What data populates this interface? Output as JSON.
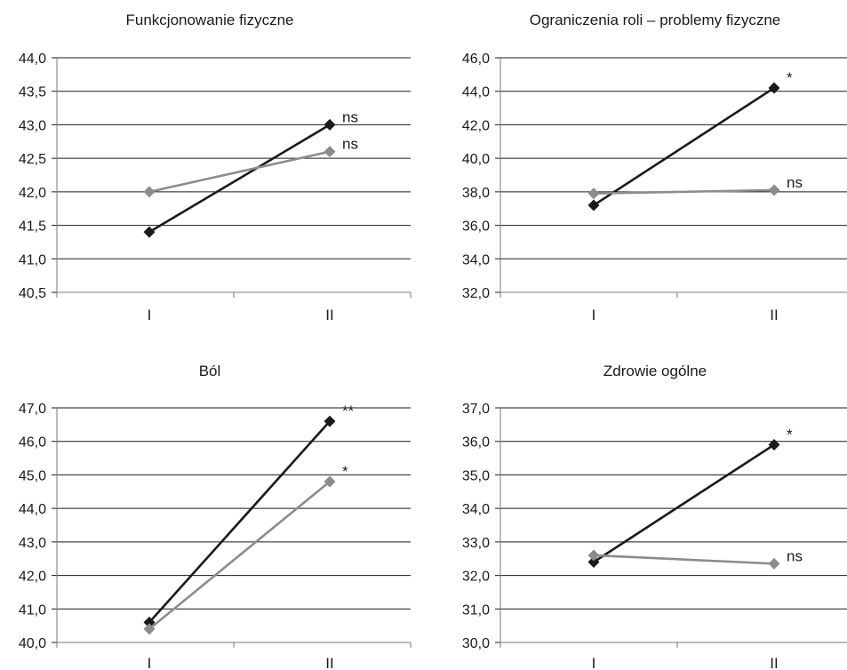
{
  "colors": {
    "series_dark": "#1a1a1a",
    "series_gray": "#8c8c8c",
    "axis": "#7a7a7a",
    "grid": "#1a1a1a"
  },
  "chart_data": [
    {
      "type": "line",
      "title": "Funkcjonowanie fizyczne",
      "categories": [
        "I",
        "II"
      ],
      "ylim": [
        40.5,
        44.0
      ],
      "yticks": [
        "44,0",
        "43,5",
        "43,0",
        "42,5",
        "42,0",
        "41,5",
        "41,0",
        "40,5"
      ],
      "grid": true,
      "series": [
        {
          "values": [
            41.4,
            43.0
          ],
          "color": "#1a1a1a",
          "marker": "diamond",
          "annotation": "ns"
        },
        {
          "values": [
            42.0,
            42.6
          ],
          "color": "#8c8c8c",
          "marker": "diamond",
          "annotation": "ns"
        }
      ]
    },
    {
      "type": "line",
      "title": "Ograniczenia roli – problemy fizyczne",
      "categories": [
        "I",
        "II"
      ],
      "ylim": [
        32.0,
        46.0
      ],
      "yticks": [
        "46,0",
        "44,0",
        "42,0",
        "40,0",
        "38,0",
        "36,0",
        "34,0",
        "32,0"
      ],
      "grid": true,
      "series": [
        {
          "values": [
            37.2,
            44.2
          ],
          "color": "#1a1a1a",
          "marker": "diamond",
          "annotation": "*"
        },
        {
          "values": [
            37.9,
            38.1
          ],
          "color": "#8c8c8c",
          "marker": "diamond",
          "annotation": "ns"
        }
      ]
    },
    {
      "type": "line",
      "title": "Ból",
      "categories": [
        "I",
        "II"
      ],
      "ylim": [
        40.0,
        47.0
      ],
      "yticks": [
        "47,0",
        "46,0",
        "45,0",
        "44,0",
        "43,0",
        "42,0",
        "41,0",
        "40,0"
      ],
      "grid": true,
      "series": [
        {
          "values": [
            40.6,
            46.6
          ],
          "color": "#1a1a1a",
          "marker": "diamond",
          "annotation": "**"
        },
        {
          "values": [
            40.4,
            44.8
          ],
          "color": "#8c8c8c",
          "marker": "diamond",
          "annotation": "*"
        }
      ]
    },
    {
      "type": "line",
      "title": "Zdrowie ogólne",
      "categories": [
        "I",
        "II"
      ],
      "ylim": [
        30.0,
        37.0
      ],
      "yticks": [
        "37,0",
        "36,0",
        "35,0",
        "34,0",
        "33,0",
        "32,0",
        "31,0",
        "30,0"
      ],
      "grid": true,
      "series": [
        {
          "values": [
            32.4,
            35.9
          ],
          "color": "#1a1a1a",
          "marker": "diamond",
          "annotation": "*"
        },
        {
          "values": [
            32.6,
            32.35
          ],
          "color": "#8c8c8c",
          "marker": "diamond",
          "annotation": "ns"
        }
      ]
    }
  ]
}
